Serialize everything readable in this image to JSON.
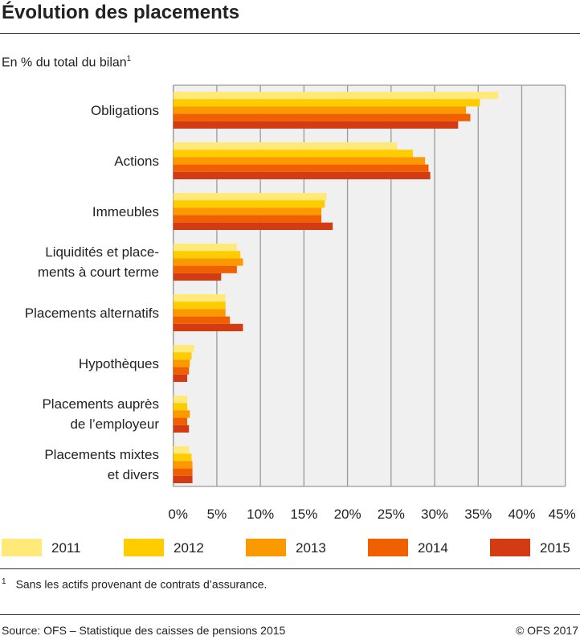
{
  "title": "Évolution des placements",
  "subtitle": "En % du total du bilan",
  "subtitle_note": "1",
  "footnote_mark": "1",
  "footnote": "Sans les actifs provenant de contrats d’assurance.",
  "source": "Source: OFS – Statistique des caisses de pensions 2015",
  "copyright": "© OFS 2017",
  "chart_data": {
    "type": "bar",
    "orientation": "horizontal",
    "categories": [
      "Obligations",
      "Actions",
      "Immeubles",
      "Liquidités et place-\nments à court terme",
      "Placements alternatifs",
      "Hypothèques",
      "Placements auprès\nde l’employeur",
      "Placements mixtes\net divers"
    ],
    "series": [
      {
        "name": "2011",
        "color": "#FFE978",
        "values": [
          37.3,
          25.7,
          17.6,
          7.3,
          6.0,
          2.4,
          1.6,
          1.8
        ]
      },
      {
        "name": "2012",
        "color": "#FFCC00",
        "values": [
          35.2,
          27.5,
          17.4,
          7.7,
          6.0,
          2.1,
          1.6,
          2.1
        ]
      },
      {
        "name": "2013",
        "color": "#FB9A00",
        "values": [
          33.6,
          28.9,
          17.0,
          8.0,
          6.0,
          1.9,
          1.9,
          2.2
        ]
      },
      {
        "name": "2014",
        "color": "#F06000",
        "values": [
          34.1,
          29.3,
          17.0,
          7.3,
          6.5,
          1.8,
          1.6,
          2.2
        ]
      },
      {
        "name": "2015",
        "color": "#D33B12",
        "values": [
          32.7,
          29.5,
          18.3,
          5.5,
          8.0,
          1.6,
          1.8,
          2.2
        ]
      }
    ],
    "xlim": [
      0,
      45
    ],
    "xticks": [
      0,
      5,
      10,
      15,
      20,
      25,
      30,
      35,
      40,
      45
    ],
    "tick_labels": [
      "0%",
      "5%",
      "10%",
      "15%",
      "20%",
      "25%",
      "30%",
      "35%",
      "40%",
      "45%"
    ],
    "grid": true,
    "legend": "bottom",
    "plot_background": "#F0F0F0"
  }
}
